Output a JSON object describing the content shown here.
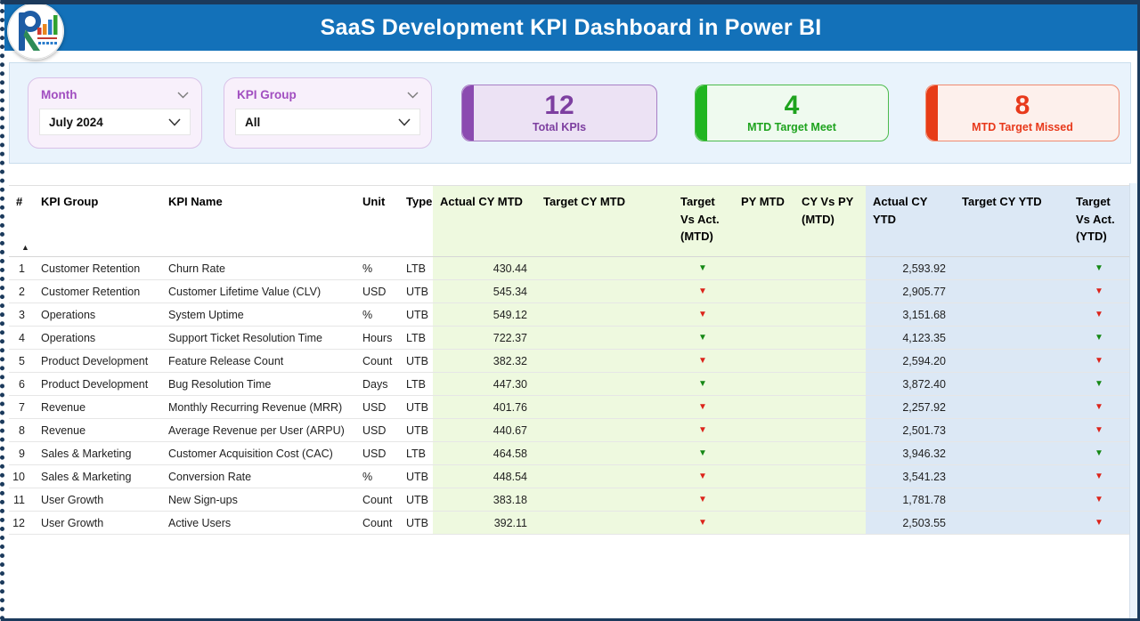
{
  "header": {
    "title": "SaaS Development KPI Dashboard in Power BI"
  },
  "filters": {
    "month": {
      "label": "Month",
      "value": "July 2024"
    },
    "kpi_group": {
      "label": "KPI Group",
      "value": "All"
    }
  },
  "cards": [
    {
      "id": "total-kpis",
      "value": "12",
      "label": "Total KPIs",
      "color": "#7d3fa0"
    },
    {
      "id": "mtd-target-meet",
      "value": "4",
      "label": "MTD Target Meet",
      "color": "#1ea31e"
    },
    {
      "id": "mtd-target-missed",
      "value": "8",
      "label": "MTD Target Missed",
      "color": "#e8391b"
    }
  ],
  "table": {
    "sort_indicator": "▲",
    "arrow_glyph": "▼",
    "arrow_colors": {
      "meet": "#15881f",
      "missed": "#dc231a"
    },
    "zone_colors": {
      "mtd": "#eef9df",
      "ytd": "#dce8f5"
    },
    "columns": [
      {
        "key": "num",
        "label": "#"
      },
      {
        "key": "group",
        "label": "KPI Group"
      },
      {
        "key": "name",
        "label": "KPI Name"
      },
      {
        "key": "unit",
        "label": "Unit"
      },
      {
        "key": "type",
        "label": "Type"
      },
      {
        "key": "actual_cy_mtd",
        "label": "Actual CY MTD"
      },
      {
        "key": "target_cy_mtd",
        "label": "Target CY MTD"
      },
      {
        "key": "target_vs_act_mtd",
        "label": "Target Vs Act. (MTD)"
      },
      {
        "key": "py_mtd",
        "label": "PY MTD"
      },
      {
        "key": "cy_vs_py_mtd",
        "label": "CY Vs PY (MTD)"
      },
      {
        "key": "actual_cy_ytd",
        "label": "Actual CY YTD"
      },
      {
        "key": "target_cy_ytd",
        "label": "Target CY YTD"
      },
      {
        "key": "target_vs_act_ytd",
        "label": "Target Vs Act. (YTD)"
      }
    ],
    "rows": [
      {
        "num": "1",
        "group": "Customer Retention",
        "name": "Churn Rate",
        "unit": "%",
        "type": "LTB",
        "actual_cy_mtd": "430.44",
        "target_cy_mtd": "",
        "target_vs_act_mtd": "green",
        "py_mtd": "",
        "cy_vs_py_mtd": "",
        "actual_cy_ytd": "2,593.92",
        "target_cy_ytd": "",
        "target_vs_act_ytd": "green"
      },
      {
        "num": "2",
        "group": "Customer Retention",
        "name": "Customer Lifetime Value (CLV)",
        "unit": "USD",
        "type": "UTB",
        "actual_cy_mtd": "545.34",
        "target_cy_mtd": "",
        "target_vs_act_mtd": "red",
        "py_mtd": "",
        "cy_vs_py_mtd": "",
        "actual_cy_ytd": "2,905.77",
        "target_cy_ytd": "",
        "target_vs_act_ytd": "red"
      },
      {
        "num": "3",
        "group": "Operations",
        "name": "System Uptime",
        "unit": "%",
        "type": "UTB",
        "actual_cy_mtd": "549.12",
        "target_cy_mtd": "",
        "target_vs_act_mtd": "red",
        "py_mtd": "",
        "cy_vs_py_mtd": "",
        "actual_cy_ytd": "3,151.68",
        "target_cy_ytd": "",
        "target_vs_act_ytd": "red"
      },
      {
        "num": "4",
        "group": "Operations",
        "name": "Support Ticket Resolution Time",
        "unit": "Hours",
        "type": "LTB",
        "actual_cy_mtd": "722.37",
        "target_cy_mtd": "",
        "target_vs_act_mtd": "green",
        "py_mtd": "",
        "cy_vs_py_mtd": "",
        "actual_cy_ytd": "4,123.35",
        "target_cy_ytd": "",
        "target_vs_act_ytd": "green"
      },
      {
        "num": "5",
        "group": "Product Development",
        "name": "Feature Release Count",
        "unit": "Count",
        "type": "UTB",
        "actual_cy_mtd": "382.32",
        "target_cy_mtd": "",
        "target_vs_act_mtd": "red",
        "py_mtd": "",
        "cy_vs_py_mtd": "",
        "actual_cy_ytd": "2,594.20",
        "target_cy_ytd": "",
        "target_vs_act_ytd": "red"
      },
      {
        "num": "6",
        "group": "Product Development",
        "name": "Bug Resolution Time",
        "unit": "Days",
        "type": "LTB",
        "actual_cy_mtd": "447.30",
        "target_cy_mtd": "",
        "target_vs_act_mtd": "green",
        "py_mtd": "",
        "cy_vs_py_mtd": "",
        "actual_cy_ytd": "3,872.40",
        "target_cy_ytd": "",
        "target_vs_act_ytd": "green"
      },
      {
        "num": "7",
        "group": "Revenue",
        "name": "Monthly Recurring Revenue (MRR)",
        "unit": "USD",
        "type": "UTB",
        "actual_cy_mtd": "401.76",
        "target_cy_mtd": "",
        "target_vs_act_mtd": "red",
        "py_mtd": "",
        "cy_vs_py_mtd": "",
        "actual_cy_ytd": "2,257.92",
        "target_cy_ytd": "",
        "target_vs_act_ytd": "red"
      },
      {
        "num": "8",
        "group": "Revenue",
        "name": "Average Revenue per User (ARPU)",
        "unit": "USD",
        "type": "UTB",
        "actual_cy_mtd": "440.67",
        "target_cy_mtd": "",
        "target_vs_act_mtd": "red",
        "py_mtd": "",
        "cy_vs_py_mtd": "",
        "actual_cy_ytd": "2,501.73",
        "target_cy_ytd": "",
        "target_vs_act_ytd": "red"
      },
      {
        "num": "9",
        "group": "Sales & Marketing",
        "name": "Customer Acquisition Cost (CAC)",
        "unit": "USD",
        "type": "LTB",
        "actual_cy_mtd": "464.58",
        "target_cy_mtd": "",
        "target_vs_act_mtd": "green",
        "py_mtd": "",
        "cy_vs_py_mtd": "",
        "actual_cy_ytd": "3,946.32",
        "target_cy_ytd": "",
        "target_vs_act_ytd": "green"
      },
      {
        "num": "10",
        "group": "Sales & Marketing",
        "name": "Conversion Rate",
        "unit": "%",
        "type": "UTB",
        "actual_cy_mtd": "448.54",
        "target_cy_mtd": "",
        "target_vs_act_mtd": "red",
        "py_mtd": "",
        "cy_vs_py_mtd": "",
        "actual_cy_ytd": "3,541.23",
        "target_cy_ytd": "",
        "target_vs_act_ytd": "red"
      },
      {
        "num": "11",
        "group": "User Growth",
        "name": "New Sign-ups",
        "unit": "Count",
        "type": "UTB",
        "actual_cy_mtd": "383.18",
        "target_cy_mtd": "",
        "target_vs_act_mtd": "red",
        "py_mtd": "",
        "cy_vs_py_mtd": "",
        "actual_cy_ytd": "1,781.78",
        "target_cy_ytd": "",
        "target_vs_act_ytd": "red"
      },
      {
        "num": "12",
        "group": "User Growth",
        "name": "Active Users",
        "unit": "Count",
        "type": "UTB",
        "actual_cy_mtd": "392.11",
        "target_cy_mtd": "",
        "target_vs_act_mtd": "red",
        "py_mtd": "",
        "cy_vs_py_mtd": "",
        "actual_cy_ytd": "2,503.55",
        "target_cy_ytd": "",
        "target_vs_act_ytd": "red"
      }
    ]
  },
  "colors": {
    "title_bar": "#1371b9",
    "frame": "#1b3a5c",
    "filter_band": "#e9f3fc",
    "slicer_bg": "#f8f0fb",
    "slicer_label": "#a14ec0"
  }
}
